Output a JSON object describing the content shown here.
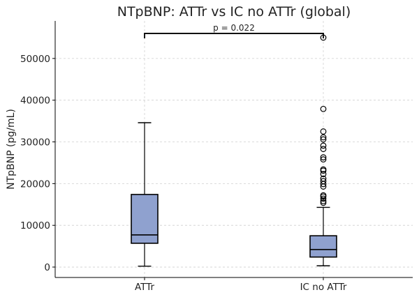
{
  "chart_data": {
    "type": "box",
    "title": "NTpBNP: ATTr vs IC no ATTr (global)",
    "xlabel": "",
    "ylabel": "NTpBNP (pg/mL)",
    "ylim": [
      -2500,
      59000
    ],
    "yticks": [
      0,
      10000,
      20000,
      30000,
      40000,
      50000
    ],
    "grid": true,
    "box_color": "#8fa1cf",
    "categories": [
      "ATTr",
      "IC no ATTr"
    ],
    "boxes": [
      {
        "name": "ATTr",
        "whisker_low": 200,
        "q1": 5700,
        "median": 7700,
        "q3": 17400,
        "whisker_high": 34600,
        "outliers": []
      },
      {
        "name": "IC no ATTr",
        "whisker_low": 300,
        "q1": 2400,
        "median": 4200,
        "q3": 7500,
        "whisker_high": 14300,
        "outliers": [
          15400,
          15800,
          16400,
          16900,
          17200,
          19300,
          19900,
          20600,
          21200,
          22300,
          23100,
          23400,
          25800,
          26300,
          28300,
          29100,
          30600,
          31100,
          32500,
          37900,
          55000
        ]
      }
    ],
    "annotations": [
      {
        "text": "p = 0.022",
        "from": "ATTr",
        "to": "IC no ATTr",
        "y": 56000
      }
    ]
  }
}
